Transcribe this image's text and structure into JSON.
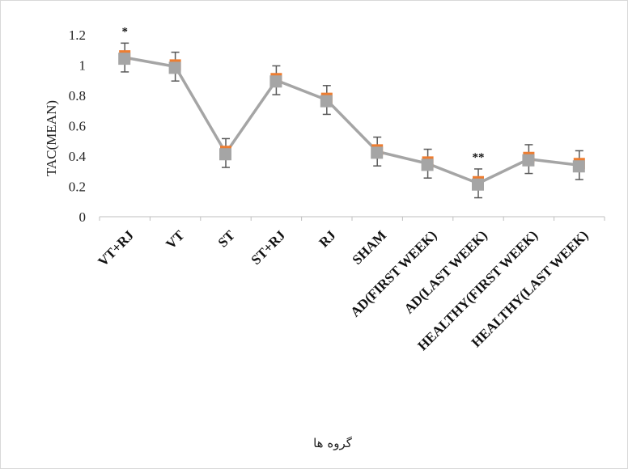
{
  "chart_data": {
    "type": "line",
    "categories": [
      "VT+RJ",
      "VT",
      "ST",
      "ST+RJ",
      "RJ",
      "SHAM",
      "AD(FIRST WEEK)",
      "AD(LAST WEEK)",
      "HEALTHY(FIRST WEEK)",
      "HEALTHY(LAST WEEK)"
    ],
    "values": [
      1.05,
      0.99,
      0.42,
      0.9,
      0.77,
      0.43,
      0.35,
      0.22,
      0.38,
      0.34
    ],
    "error": [
      0.095,
      0.095,
      0.095,
      0.095,
      0.095,
      0.095,
      0.095,
      0.095,
      0.095,
      0.095
    ],
    "annotations": [
      {
        "category": "VT+RJ",
        "text": "*"
      },
      {
        "category": "AD(LAST WEEK)",
        "text": "**"
      }
    ],
    "title": "",
    "xlabel": "گروه ها",
    "ylabel": "TAC(MEAN)",
    "ylim": [
      0,
      1.2
    ],
    "yticks": [
      "0",
      "0.2",
      "0.4",
      "0.6",
      "0.8",
      "1",
      "1.2"
    ],
    "grid": false,
    "colors": {
      "line": "#a5a5a5",
      "marker_back": "#ed7d31",
      "marker_front": "#a5a5a5",
      "error_bar": "#595959",
      "axis": "#bfbfbf"
    }
  }
}
